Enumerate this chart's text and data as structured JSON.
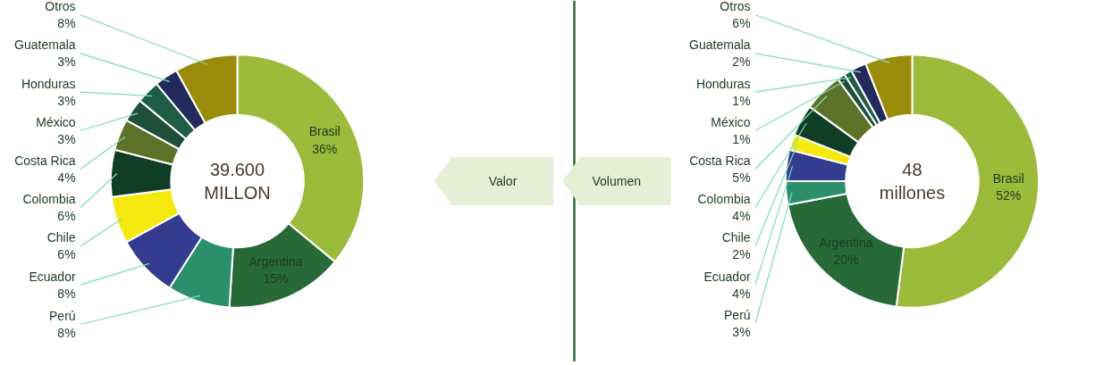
{
  "chart_data": [
    {
      "type": "donut",
      "categories": [
        "Brasil",
        "Argentina",
        "Perú",
        "Ecuador",
        "Chile",
        "Colombia",
        "Costa Rica",
        "México",
        "Honduras",
        "Guatemala",
        "Otros"
      ],
      "values": [
        36,
        15,
        8,
        8,
        6,
        6,
        4,
        3,
        3,
        3,
        8
      ],
      "colors": [
        "#9bbb3b",
        "#276a38",
        "#2a8f6a",
        "#343c8f",
        "#f5e90f",
        "#0f3d26",
        "#5b7228",
        "#1f4e3a",
        "#1e5c46",
        "#222a5c",
        "#9b8b0a"
      ],
      "value_labels": [
        "36%",
        "15%",
        "8%",
        "8%",
        "6%",
        "6%",
        "4%",
        "3%",
        "3%",
        "3%",
        "8%"
      ],
      "annotations": [
        "39.600\nMILLON",
        "Valor"
      ]
    },
    {
      "type": "donut",
      "categories": [
        "Brasil",
        "Argentina",
        "Perú",
        "Ecuador",
        "Chile",
        "Colombia",
        "Costa Rica",
        "México",
        "Honduras",
        "Guatemala",
        "Otros"
      ],
      "values": [
        52,
        20,
        3,
        4,
        2,
        4,
        5,
        1,
        1,
        2,
        6
      ],
      "colors": [
        "#9bbb3b",
        "#276a38",
        "#2a8f6a",
        "#343c8f",
        "#f5e90f",
        "#0f3d26",
        "#5b7228",
        "#1f4e3a",
        "#1e5c46",
        "#222a5c",
        "#9b8b0a"
      ],
      "value_labels": [
        "52%",
        "20%",
        "3%",
        "4%",
        "2%",
        "4%",
        "5%",
        "1%",
        "1%",
        "2%",
        "6%"
      ],
      "annotations": [
        "48\nmillones",
        "Volumen"
      ]
    }
  ]
}
